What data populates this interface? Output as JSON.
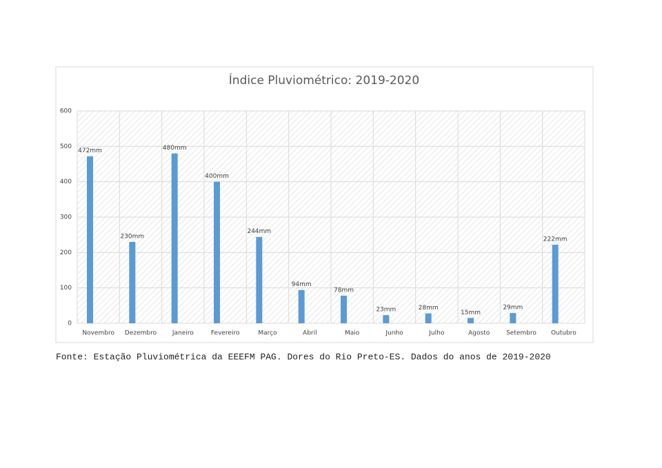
{
  "chart_data": {
    "type": "bar",
    "title": "Índice Pluviométrico: 2019-2020",
    "categories": [
      "Novembro",
      "Dezembro",
      "Janeiro",
      "Fevereiro",
      "Março",
      "Abril",
      "Maio",
      "Junho",
      "Julho",
      "Agosto",
      "Setembro",
      "Outubro"
    ],
    "values": [
      472,
      230,
      480,
      400,
      244,
      94,
      78,
      23,
      28,
      15,
      29,
      222
    ],
    "value_labels": [
      "472mm",
      "230mm",
      "480mm",
      "400mm",
      "244mm",
      "94mm",
      "78mm",
      "23mm",
      "28mm",
      "15mm",
      "29mm",
      "222mm"
    ],
    "color": "#5b9bd5",
    "ylim": [
      0,
      600
    ],
    "yticks": [
      0,
      100,
      200,
      300,
      400,
      500,
      600
    ],
    "grid": true,
    "source": "Fonte: Estação Pluviométrica da EEEFM PAG. Dores do Rio Preto-ES. Dados do anos de 2019-2020"
  }
}
